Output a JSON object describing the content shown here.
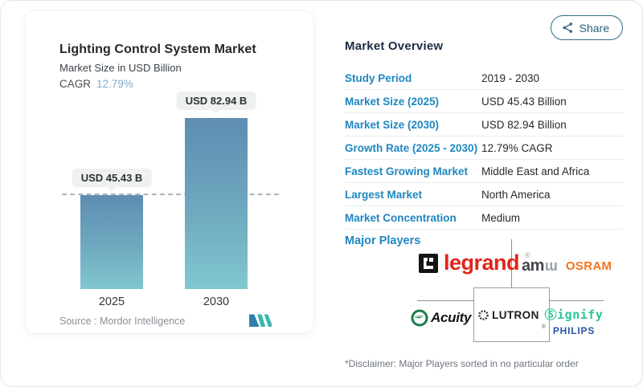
{
  "chart_data": {
    "type": "bar",
    "title": "Lighting Control System Market",
    "subtitle": "Market Size in USD Billion",
    "cagr_label": "CAGR",
    "cagr_value": "12.79%",
    "categories": [
      "2025",
      "2030"
    ],
    "values": [
      45.43,
      82.94
    ],
    "bar_labels": [
      "USD 45.43 B",
      "USD 82.94 B"
    ],
    "ylim": [
      0,
      90
    ],
    "grid": "off",
    "reference_line_at_value": 45.43,
    "source": "Source :  Mordor Intelligence",
    "bar_gradient": [
      "#5d8db2",
      "#80c7cf"
    ]
  },
  "share": {
    "label": "Share",
    "icon": "share-nodes-icon",
    "color": "#2b5f7c"
  },
  "overview": {
    "heading": "Market Overview",
    "rows": [
      {
        "label": "Study Period",
        "value": "2019 - 2030"
      },
      {
        "label": "Market Size (2025)",
        "value": "USD 45.43 Billion"
      },
      {
        "label": "Market Size (2030)",
        "value": "USD 82.94 Billion"
      },
      {
        "label": "Growth Rate (2025 - 2030)",
        "value": "12.79% CAGR"
      },
      {
        "label": "Fastest Growing Market",
        "value": "Middle East and Africa"
      },
      {
        "label": "Largest Market",
        "value": "North America"
      },
      {
        "label": "Market Concentration",
        "value": "Medium"
      }
    ],
    "label_color": "#1f86c0"
  },
  "players": {
    "section_label": "Major Players",
    "legrand": {
      "name": "legrand",
      "reg": "®",
      "brand_red": "#e1251b"
    },
    "ams_osram": {
      "part1": "am",
      "part2": "ɯ",
      "osram": "OSRAM",
      "osram_orange": "#f1731f"
    },
    "acuity": {
      "name": "Acuity",
      "brand_green": "#17804a"
    },
    "lutron": {
      "name": "LUTRON",
      "reg": "®"
    },
    "signify": {
      "name": "Ⓢignify",
      "sub": "PHILIPS",
      "brand_green": "#2cc598",
      "philips_blue": "#2a54a5"
    }
  },
  "disclaimer": "*Disclaimer: Major Players sorted in no particular order"
}
